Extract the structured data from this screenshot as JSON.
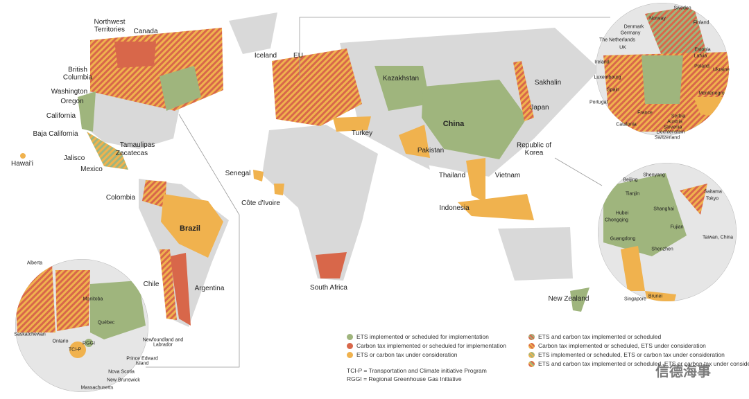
{
  "main_map": {
    "labels": [
      "Northwest Territories",
      "Canada",
      "British Columbia",
      "Washington",
      "Oregon",
      "California",
      "Baja California",
      "Hawai'i",
      "Tamaulipas",
      "Zacatecas",
      "Jalisco",
      "Mexico",
      "Iceland",
      "EU",
      "Kazakhstan",
      "Sakhalin",
      "Japan",
      "China",
      "Republic of Korea",
      "Turkey",
      "Pakistan",
      "Senegal",
      "Côte d'Ivoire",
      "Thailand",
      "Vietnam",
      "Indonesia",
      "Colombia",
      "Brazil",
      "Chile",
      "Argentina",
      "South Africa",
      "New Zealand"
    ]
  },
  "europe_inset": {
    "labels": [
      "Sweden",
      "Norway",
      "Finland",
      "Denmark",
      "Germany",
      "The Netherlands",
      "UK",
      "Estonia",
      "Latvia",
      "Ireland",
      "Poland",
      "Ukraine",
      "Luxembourg",
      "Spain",
      "Montenegro",
      "Portugal",
      "France",
      "Serbia",
      "Austria",
      "Slovenia",
      "Liechtenstein",
      "Switzerland",
      "Catalonia"
    ]
  },
  "asia_inset": {
    "labels": [
      "Shenyang",
      "Beijing",
      "Tianjin",
      "Saitama",
      "Tokyo",
      "Shanghai",
      "Hubei",
      "Chongqing",
      "Fujian",
      "Guangdong",
      "Taiwan, China",
      "Shenzhen",
      "Singapore",
      "Brunei"
    ]
  },
  "north_america_inset": {
    "labels": [
      "Alberta",
      "Manitoba",
      "Québec",
      "Saskatchewan",
      "Ontario",
      "RGGI",
      "TCI-P",
      "Newfoundland and Labrador",
      "Prince Edward Island",
      "Nova Scotia",
      "New Brunswick",
      "Massachusetts"
    ]
  },
  "legend": {
    "items": [
      {
        "label": "ETS implemented or scheduled for implementation",
        "colors": [
          "#9fb57d"
        ]
      },
      {
        "label": "Carbon tax implemented or scheduled for implementation",
        "colors": [
          "#d8674a"
        ]
      },
      {
        "label": "ETS or carbon tax under consideration",
        "colors": [
          "#f0b24e"
        ]
      },
      {
        "label": "ETS and carbon tax implemented or scheduled",
        "colors": [
          "#9fb57d",
          "#d8674a"
        ]
      },
      {
        "label": "Carbon tax implemented or scheduled, ETS under consideration",
        "colors": [
          "#d8674a",
          "#f0b24e"
        ]
      },
      {
        "label": "ETS implemented or scheduled, ETS or carbon tax under consideration",
        "colors": [
          "#9fb57d",
          "#f0b24e"
        ]
      },
      {
        "label": "ETS and carbon tax implemented or scheduled, ETS or carbon tax under consideration",
        "colors": [
          "#9fb57d",
          "#d8674a",
          "#f0b24e"
        ]
      }
    ],
    "notes": [
      "TCI-P = Transportation and Climate initiative Program",
      "RGGI = Regional Greenhouse Gas Initiative"
    ]
  },
  "watermark": "信德海事"
}
